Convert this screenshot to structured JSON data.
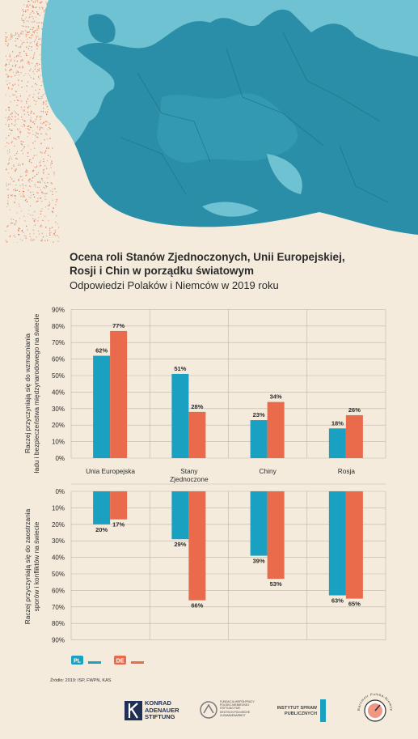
{
  "title_lines": [
    "Ocena roli Stanów Zjednoczonych, Unii Europejskiej,",
    "Rosji i Chin w porządku światowym"
  ],
  "subtitle": "Odpowiedzi Polaków i Niemców w 2019 roku",
  "colors": {
    "pl": "#1aa0c0",
    "de": "#ea6a4c",
    "background": "#f4ebdc",
    "map_land": "#2b8ea8",
    "map_sea": "#6fc2d1"
  },
  "chart_data": [
    {
      "type": "bar",
      "title": "",
      "ylabel": "Raczej przyczyniają się do wzmacniania ładu i bezpieczeństwa międzynarodowego na świecie",
      "ylim": [
        0,
        90
      ],
      "yticks": [
        "0%",
        "10%",
        "20%",
        "30%",
        "40%",
        "50%",
        "60%",
        "70%",
        "80%",
        "90%"
      ],
      "categories": [
        "Unia Europejska",
        "Stany Zjednoczone",
        "Chiny",
        "Rosja"
      ],
      "series": [
        {
          "name": "PL",
          "values": [
            62,
            51,
            23,
            18
          ],
          "labels": [
            "62%",
            "51%",
            "23%",
            "18%"
          ]
        },
        {
          "name": "DE",
          "values": [
            77,
            28,
            34,
            26
          ],
          "labels": [
            "77%",
            "28%",
            "34%",
            "26%"
          ]
        }
      ],
      "grid": true
    },
    {
      "type": "bar",
      "title": "",
      "ylabel": "Raczej przyczyniają się do zaostrzania sporów i konfliktów na świecie",
      "ylim": [
        0,
        90
      ],
      "direction": "downward",
      "yticks": [
        "0%",
        "10%",
        "20%",
        "30%",
        "40%",
        "50%",
        "60%",
        "70%",
        "80%",
        "90%"
      ],
      "categories": [
        "Unia Europejska",
        "Stany Zjednoczone",
        "Chiny",
        "Rosja"
      ],
      "series": [
        {
          "name": "PL",
          "values": [
            20,
            29,
            39,
            63
          ],
          "labels": [
            "20%",
            "29%",
            "39%",
            "63%"
          ]
        },
        {
          "name": "DE",
          "values": [
            17,
            66,
            53,
            65
          ],
          "labels": [
            "17%",
            "66%",
            "53%",
            "65%"
          ]
        }
      ],
      "grid": true
    }
  ],
  "category_labels": [
    [
      "Unia Europejska"
    ],
    [
      "Stany",
      "Zjednoczone"
    ],
    [
      "Chiny"
    ],
    [
      "Rosja"
    ]
  ],
  "ylabel_top_lines": [
    "Raczej przyczyniają się do wzmacniania",
    "ładu i bezpieczeństwa międzynarodowego na świecie"
  ],
  "ylabel_bottom_lines": [
    "Raczej przyczyniają się do zaostrzania",
    "sporów i konfliktów na świecie"
  ],
  "legend": {
    "pl": "PL",
    "de": "DE"
  },
  "source": "Źródło: 2019: ISP, FWPN, KAS",
  "logos": {
    "kas": [
      "KONRAD",
      "ADENAUER",
      "STIFTUNG"
    ],
    "fwpn": [
      "FUNDACJA WSPÓŁPRACY",
      "POLSKO-NIEMIECKIEJ",
      "STIFTUNG FÜR",
      "DEUTSCH-POLNISCHE",
      "ZUSAMMENARBEIT"
    ],
    "isp": [
      "INSTYTUT SPRAW",
      "PUBLICZNYCH"
    ],
    "barometr": "Barometr Polska-Niemcy"
  }
}
